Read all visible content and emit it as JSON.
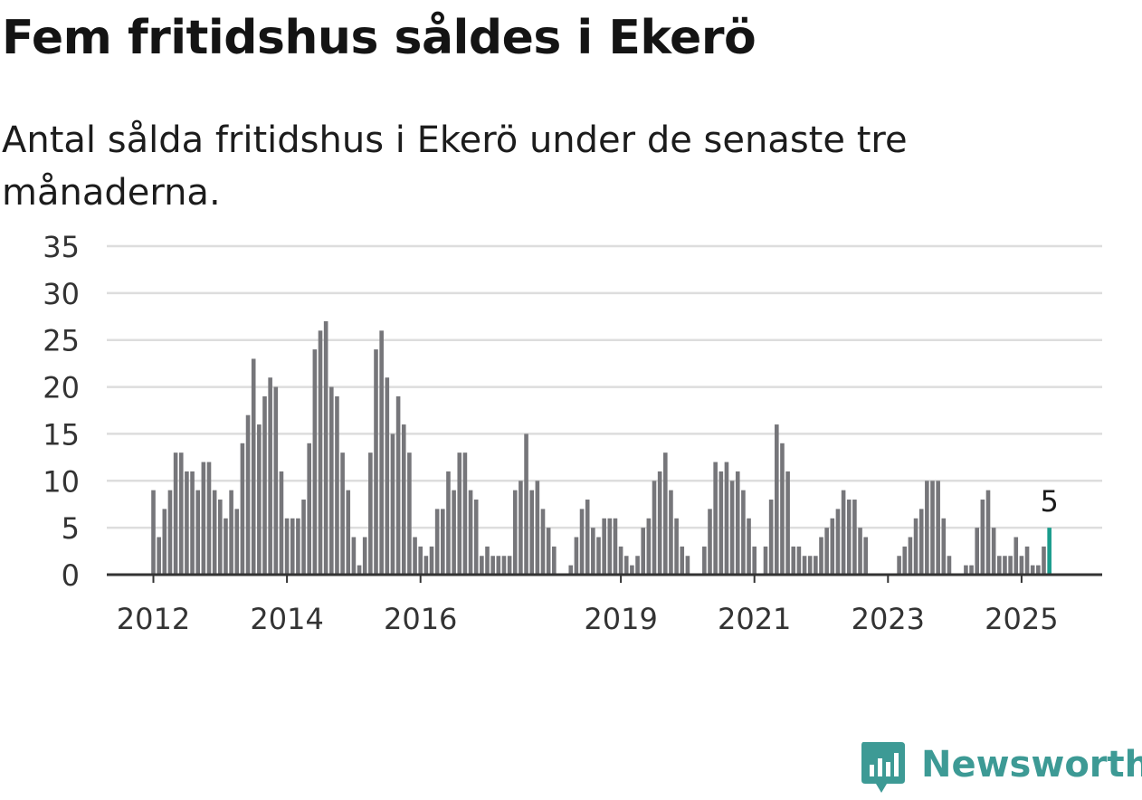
{
  "header": {
    "title": "Fem fritidshus såldes i Ekerö",
    "subtitle": "Antal sålda fritidshus i Ekerö under de senaste tre månaderna."
  },
  "brand": {
    "name": "Newsworthy",
    "icon": "newsworthy-logo-icon",
    "color": "#3d9a95"
  },
  "colors": {
    "bar": "#76767a",
    "highlight": "#1a9c8c",
    "grid": "#dddddd",
    "axis": "#333333"
  },
  "chart_data": {
    "type": "bar",
    "x_axis": "monthly, Jan 2012 – Jun 2025",
    "ylim": [
      0,
      35
    ],
    "yticks": [
      0,
      5,
      10,
      15,
      20,
      25,
      30,
      35
    ],
    "xticks": [
      {
        "label": "2012",
        "index": 0
      },
      {
        "label": "2014",
        "index": 24
      },
      {
        "label": "2016",
        "index": 48
      },
      {
        "label": "2019",
        "index": 84
      },
      {
        "label": "2021",
        "index": 108
      },
      {
        "label": "2023",
        "index": 132
      },
      {
        "label": "2025",
        "index": 156
      }
    ],
    "grid": true,
    "highlight_label": "5",
    "values": [
      9,
      4,
      7,
      9,
      13,
      13,
      11,
      11,
      9,
      12,
      12,
      9,
      8,
      6,
      9,
      7,
      14,
      17,
      23,
      16,
      19,
      21,
      20,
      11,
      6,
      6,
      6,
      8,
      14,
      24,
      26,
      27,
      20,
      19,
      13,
      9,
      4,
      1,
      4,
      13,
      24,
      26,
      21,
      15,
      19,
      16,
      13,
      4,
      3,
      2,
      3,
      7,
      7,
      11,
      9,
      13,
      13,
      9,
      8,
      2,
      3,
      2,
      2,
      2,
      2,
      9,
      10,
      15,
      9,
      10,
      7,
      5,
      3,
      0,
      0,
      1,
      4,
      7,
      8,
      5,
      4,
      6,
      6,
      6,
      3,
      2,
      1,
      2,
      5,
      6,
      10,
      11,
      13,
      9,
      6,
      3,
      2,
      0,
      0,
      3,
      7,
      12,
      11,
      12,
      10,
      11,
      9,
      6,
      3,
      0,
      3,
      8,
      16,
      14,
      11,
      3,
      3,
      2,
      2,
      2,
      4,
      5,
      6,
      7,
      9,
      8,
      8,
      5,
      4,
      0,
      0,
      0,
      0,
      0,
      2,
      3,
      4,
      6,
      7,
      10,
      10,
      10,
      6,
      2,
      0,
      0,
      1,
      1,
      5,
      8,
      9,
      5,
      2,
      2,
      2,
      4,
      2,
      3,
      1,
      1,
      3,
      5
    ]
  }
}
